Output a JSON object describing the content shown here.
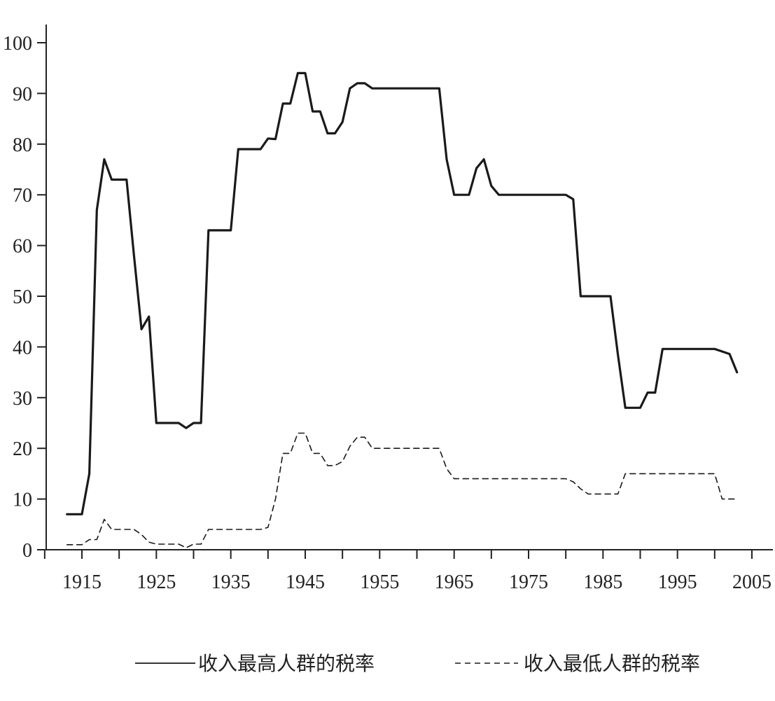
{
  "chart_data": {
    "type": "line",
    "title": "",
    "xlabel": "",
    "ylabel": "",
    "xlim": [
      1905,
      2008
    ],
    "ylim": [
      0,
      100
    ],
    "x_ticks": [
      1915,
      1925,
      1935,
      1945,
      1955,
      1965,
      1975,
      1985,
      1995,
      2005
    ],
    "y_ticks": [
      0,
      10,
      20,
      30,
      40,
      50,
      60,
      70,
      80,
      90,
      100
    ],
    "grid": false,
    "legend_position": "bottom",
    "series": [
      {
        "name": "收入最高人群的税率",
        "style": "solid",
        "color": "#1a1a1a",
        "points": [
          [
            1913,
            7
          ],
          [
            1915,
            7
          ],
          [
            1916,
            15
          ],
          [
            1917,
            67
          ],
          [
            1918,
            77
          ],
          [
            1919,
            73
          ],
          [
            1920,
            73
          ],
          [
            1921,
            73
          ],
          [
            1922,
            58
          ],
          [
            1923,
            43.5
          ],
          [
            1924,
            46
          ],
          [
            1925,
            25
          ],
          [
            1926,
            25
          ],
          [
            1927,
            25
          ],
          [
            1928,
            25
          ],
          [
            1929,
            24
          ],
          [
            1930,
            25
          ],
          [
            1931,
            25
          ],
          [
            1932,
            63
          ],
          [
            1933,
            63
          ],
          [
            1934,
            63
          ],
          [
            1935,
            63
          ],
          [
            1936,
            79
          ],
          [
            1937,
            79
          ],
          [
            1938,
            79
          ],
          [
            1939,
            79
          ],
          [
            1940,
            81.1
          ],
          [
            1941,
            81
          ],
          [
            1942,
            88
          ],
          [
            1943,
            88
          ],
          [
            1944,
            94
          ],
          [
            1945,
            94
          ],
          [
            1946,
            86.45
          ],
          [
            1947,
            86.45
          ],
          [
            1948,
            82.13
          ],
          [
            1949,
            82.13
          ],
          [
            1950,
            84.36
          ],
          [
            1951,
            91
          ],
          [
            1952,
            92
          ],
          [
            1953,
            92
          ],
          [
            1954,
            91
          ],
          [
            1955,
            91
          ],
          [
            1956,
            91
          ],
          [
            1957,
            91
          ],
          [
            1958,
            91
          ],
          [
            1959,
            91
          ],
          [
            1960,
            91
          ],
          [
            1961,
            91
          ],
          [
            1962,
            91
          ],
          [
            1963,
            91
          ],
          [
            1964,
            77
          ],
          [
            1965,
            70
          ],
          [
            1966,
            70
          ],
          [
            1967,
            70
          ],
          [
            1968,
            75.25
          ],
          [
            1969,
            77
          ],
          [
            1970,
            71.75
          ],
          [
            1971,
            70
          ],
          [
            1972,
            70
          ],
          [
            1973,
            70
          ],
          [
            1974,
            70
          ],
          [
            1975,
            70
          ],
          [
            1976,
            70
          ],
          [
            1977,
            70
          ],
          [
            1978,
            70
          ],
          [
            1979,
            70
          ],
          [
            1980,
            70
          ],
          [
            1981,
            69.13
          ],
          [
            1982,
            50
          ],
          [
            1983,
            50
          ],
          [
            1984,
            50
          ],
          [
            1985,
            50
          ],
          [
            1986,
            50
          ],
          [
            1987,
            38.5
          ],
          [
            1988,
            28
          ],
          [
            1989,
            28
          ],
          [
            1990,
            28
          ],
          [
            1991,
            31
          ],
          [
            1992,
            31
          ],
          [
            1993,
            39.6
          ],
          [
            1994,
            39.6
          ],
          [
            1995,
            39.6
          ],
          [
            1996,
            39.6
          ],
          [
            1997,
            39.6
          ],
          [
            1998,
            39.6
          ],
          [
            1999,
            39.6
          ],
          [
            2000,
            39.6
          ],
          [
            2001,
            39.1
          ],
          [
            2002,
            38.6
          ],
          [
            2003,
            35
          ]
        ]
      },
      {
        "name": "收入最低人群的税率",
        "style": "dashed",
        "color": "#1a1a1a",
        "points": [
          [
            1913,
            1
          ],
          [
            1915,
            1
          ],
          [
            1916,
            2
          ],
          [
            1917,
            2
          ],
          [
            1918,
            6
          ],
          [
            1919,
            4
          ],
          [
            1920,
            4
          ],
          [
            1921,
            4
          ],
          [
            1922,
            4
          ],
          [
            1923,
            3
          ],
          [
            1924,
            1.5
          ],
          [
            1925,
            1.1
          ],
          [
            1926,
            1.1
          ],
          [
            1927,
            1.1
          ],
          [
            1928,
            1.1
          ],
          [
            1929,
            0.4
          ],
          [
            1930,
            1.1
          ],
          [
            1931,
            1.1
          ],
          [
            1932,
            4
          ],
          [
            1933,
            4
          ],
          [
            1934,
            4
          ],
          [
            1935,
            4
          ],
          [
            1936,
            4
          ],
          [
            1937,
            4
          ],
          [
            1938,
            4
          ],
          [
            1939,
            4
          ],
          [
            1940,
            4.4
          ],
          [
            1941,
            10
          ],
          [
            1942,
            19
          ],
          [
            1943,
            19
          ],
          [
            1944,
            23
          ],
          [
            1945,
            23
          ],
          [
            1946,
            19
          ],
          [
            1947,
            19
          ],
          [
            1948,
            16.6
          ],
          [
            1949,
            16.6
          ],
          [
            1950,
            17.4
          ],
          [
            1951,
            20.4
          ],
          [
            1952,
            22.2
          ],
          [
            1953,
            22.2
          ],
          [
            1954,
            20
          ],
          [
            1955,
            20
          ],
          [
            1956,
            20
          ],
          [
            1957,
            20
          ],
          [
            1958,
            20
          ],
          [
            1959,
            20
          ],
          [
            1960,
            20
          ],
          [
            1961,
            20
          ],
          [
            1962,
            20
          ],
          [
            1963,
            20
          ],
          [
            1964,
            16
          ],
          [
            1965,
            14
          ],
          [
            1966,
            14
          ],
          [
            1967,
            14
          ],
          [
            1968,
            14
          ],
          [
            1969,
            14
          ],
          [
            1970,
            14
          ],
          [
            1971,
            14
          ],
          [
            1972,
            14
          ],
          [
            1973,
            14
          ],
          [
            1974,
            14
          ],
          [
            1975,
            14
          ],
          [
            1976,
            14
          ],
          [
            1977,
            14
          ],
          [
            1978,
            14
          ],
          [
            1979,
            14
          ],
          [
            1980,
            14
          ],
          [
            1981,
            13.4
          ],
          [
            1982,
            12
          ],
          [
            1983,
            11
          ],
          [
            1984,
            11
          ],
          [
            1985,
            11
          ],
          [
            1986,
            11
          ],
          [
            1987,
            11
          ],
          [
            1988,
            15
          ],
          [
            1989,
            15
          ],
          [
            1990,
            15
          ],
          [
            1991,
            15
          ],
          [
            1992,
            15
          ],
          [
            1993,
            15
          ],
          [
            1994,
            15
          ],
          [
            1995,
            15
          ],
          [
            1996,
            15
          ],
          [
            1997,
            15
          ],
          [
            1998,
            15
          ],
          [
            1999,
            15
          ],
          [
            2000,
            15
          ],
          [
            2001,
            10
          ],
          [
            2002,
            10
          ],
          [
            2003,
            10
          ]
        ]
      }
    ]
  }
}
